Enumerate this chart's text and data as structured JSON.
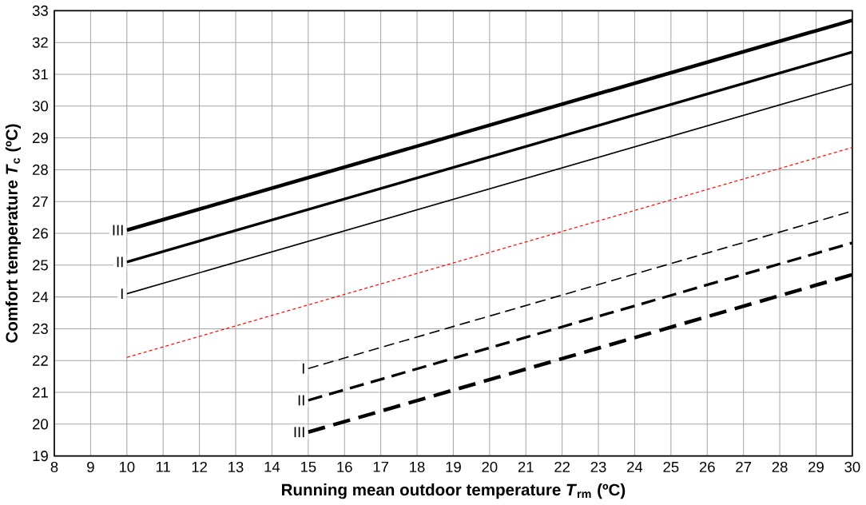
{
  "chart_data": {
    "type": "line",
    "xlabel": "Running mean outdoor temperature *T*$_{rm}$ (ºC)",
    "ylabel": "Comfort temperature *T*$_{c}$ (ºC)",
    "xlim": [
      8,
      30
    ],
    "ylim": [
      19,
      33
    ],
    "xticks": [
      8,
      9,
      10,
      11,
      12,
      13,
      14,
      15,
      16,
      17,
      18,
      19,
      20,
      21,
      22,
      23,
      24,
      25,
      26,
      27,
      28,
      29,
      30
    ],
    "yticks": [
      19,
      20,
      21,
      22,
      23,
      24,
      25,
      26,
      27,
      28,
      29,
      30,
      31,
      32,
      33
    ],
    "grid": true,
    "marker": "none",
    "series": [
      {
        "name": "III",
        "color": "#000000",
        "line_style": "solid",
        "x": [
          10,
          30
        ],
        "values": [
          26.1,
          32.7
        ]
      },
      {
        "name": "II",
        "color": "#000000",
        "line_style": "solid",
        "x": [
          10,
          30
        ],
        "values": [
          25.1,
          31.7
        ]
      },
      {
        "name": "I",
        "color": "#000000",
        "line_style": "solid",
        "x": [
          10,
          30
        ],
        "values": [
          24.1,
          30.7
        ]
      },
      {
        "color": "#ff0000",
        "line_style": "dashed",
        "x": [
          10,
          30
        ],
        "values": [
          22.1,
          28.7
        ]
      },
      {
        "name": "I",
        "color": "#000000",
        "line_style": "dashed",
        "x": [
          15,
          30
        ],
        "values": [
          21.75,
          26.7
        ]
      },
      {
        "name": "II",
        "color": "#000000",
        "line_style": "dashed",
        "x": [
          15,
          30
        ],
        "values": [
          20.75,
          25.7
        ]
      },
      {
        "name": "III",
        "color": "#000000",
        "line_style": "dashed",
        "x": [
          15,
          30
        ],
        "values": [
          19.75,
          24.7
        ]
      }
    ]
  }
}
